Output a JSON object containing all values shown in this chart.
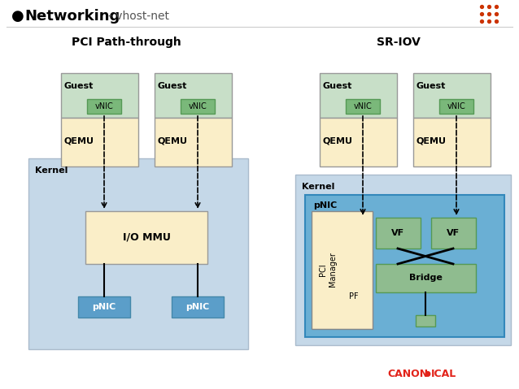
{
  "title_bullet": "Networking",
  "title_subtitle": " - vhost-net",
  "bg_color": "#ffffff",
  "dot_color": "#cc3300",
  "left_title": "PCI Path-through",
  "right_title": "SR-IOV",
  "color_guest_top": "#c8dfc8",
  "color_guest_bottom": "#faeec8",
  "color_vnic": "#7ab87a",
  "color_kernel": "#c5d8e8",
  "color_iommu": "#faeec8",
  "color_pnic_blue": "#5b9ec9",
  "color_pnic_outer": "#7ab8d4",
  "color_vf": "#8fbc8f",
  "color_bridge": "#8fbc8f",
  "color_pf_area": "#faeec8",
  "color_pnic_bg": "#6aafd4",
  "canonical_red": "#e2231a"
}
